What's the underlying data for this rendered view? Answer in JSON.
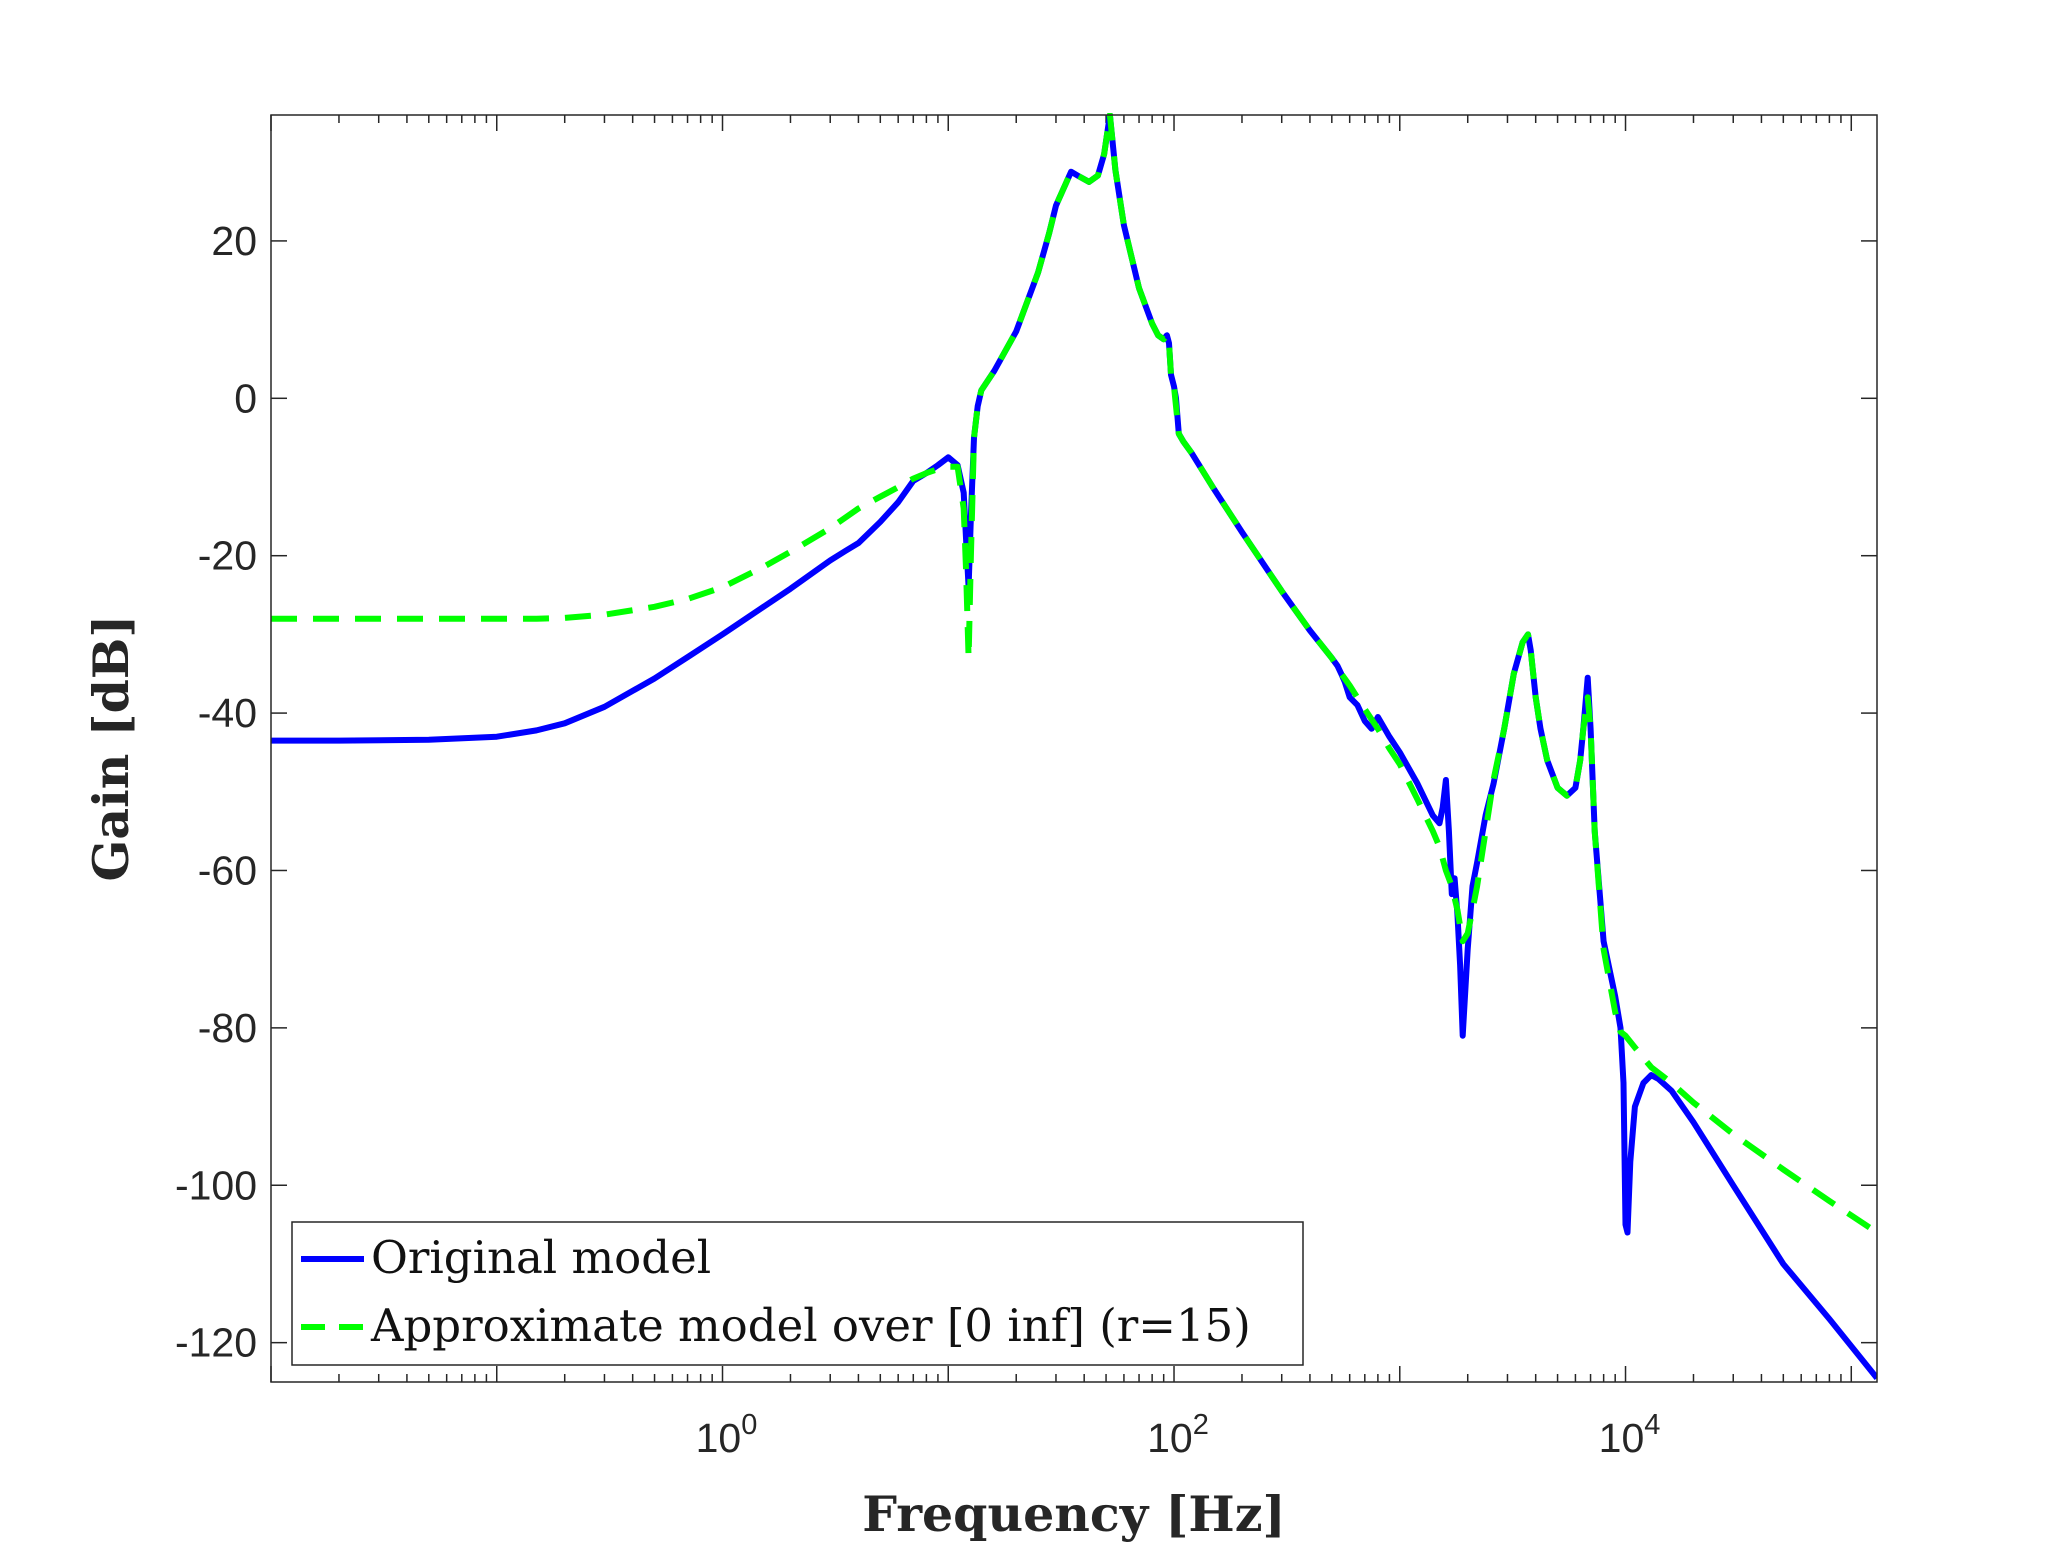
{
  "chart_data": {
    "type": "line",
    "xlabel": "Frequency [Hz]",
    "ylabel": "Gain [dB]",
    "xscale": "log",
    "xlim": [
      0.01,
      130000
    ],
    "ylim": [
      -125,
      36
    ],
    "grid": false,
    "legend_position": "bottom-left",
    "yticks": [
      20,
      0,
      -20,
      -40,
      -60,
      -80,
      -100,
      -120
    ],
    "ytick_labels": [
      "20",
      "0",
      "-20",
      "-40",
      "-60",
      "-80",
      "-100",
      "-120"
    ],
    "xticks": [
      1,
      100,
      10000
    ],
    "xtick_labels": [
      {
        "base": "10",
        "exp": "0"
      },
      {
        "base": "10",
        "exp": "2"
      },
      {
        "base": "10",
        "exp": "4"
      }
    ],
    "series": [
      {
        "name": "Original model",
        "color": "#0000ff",
        "style": "solid",
        "x": [
          0.01,
          0.02,
          0.05,
          0.1,
          0.15,
          0.2,
          0.3,
          0.5,
          0.7,
          1,
          1.5,
          2,
          3,
          3.5,
          4,
          5,
          6,
          7,
          8,
          9,
          10,
          11,
          11.7,
          12,
          12.3,
          12.6,
          13,
          13.5,
          14,
          16,
          20,
          25,
          28,
          30,
          35,
          38,
          42,
          46,
          49,
          52,
          55,
          60,
          70,
          80,
          85,
          90,
          93,
          95,
          97,
          100,
          102,
          105,
          110,
          120,
          150,
          200,
          300,
          400,
          500,
          530,
          550,
          570,
          600,
          650,
          700,
          750,
          800,
          900,
          1000,
          1200,
          1400,
          1500,
          1550,
          1600,
          1650,
          1700,
          1750,
          1800,
          1850,
          1900,
          2000,
          2100,
          2200,
          2400,
          2600,
          2900,
          3200,
          3500,
          3700,
          3800,
          3900,
          4000,
          4200,
          4500,
          5000,
          5500,
          6000,
          6300,
          6500,
          6800,
          7000,
          7300,
          8000,
          9000,
          9500,
          9800,
          10000,
          10200,
          10500,
          11000,
          12000,
          13000,
          14000,
          16000,
          20000,
          30000,
          50000,
          80000,
          130000
        ],
        "y": [
          -43.5,
          -43.5,
          -43.4,
          -43,
          -42.2,
          -41.3,
          -39.2,
          -35.6,
          -32.9,
          -30,
          -26.6,
          -24.2,
          -20.6,
          -19.4,
          -18.4,
          -15.7,
          -13.2,
          -10.5,
          -9.5,
          -8.5,
          -7.5,
          -8.5,
          -12,
          -18,
          -24,
          -15,
          -5,
          -1,
          1,
          3.5,
          8.5,
          16,
          21,
          24.5,
          28.8,
          28.2,
          27.5,
          28.3,
          31,
          36,
          29,
          22,
          14,
          9.5,
          8,
          7.5,
          8,
          7,
          3,
          1.5,
          0,
          -4.5,
          -5.5,
          -7,
          -11.5,
          -17,
          -24.5,
          -29.5,
          -33,
          -34,
          -35,
          -36,
          -38,
          -39,
          -41,
          -42,
          -40.5,
          -43,
          -45,
          -49,
          -53,
          -54,
          -52,
          -48.5,
          -55,
          -63,
          -61,
          -65.5,
          -72,
          -81,
          -70,
          -62,
          -59,
          -53,
          -49,
          -42,
          -35,
          -31,
          -30,
          -32,
          -35,
          -38,
          -42,
          -46,
          -49.5,
          -50.5,
          -49.5,
          -46,
          -42,
          -35.5,
          -42,
          -55,
          -69,
          -76,
          -80,
          -87,
          -105,
          -106,
          -97,
          -90,
          -87,
          -86,
          -86.5,
          -88,
          -92,
          -100,
          -110,
          -117,
          -124.5
        ]
      },
      {
        "name": "Approximate model over [0 inf] (r=15)",
        "color": "#00ff00",
        "style": "dashed",
        "x": [
          0.01,
          0.02,
          0.05,
          0.1,
          0.15,
          0.2,
          0.3,
          0.5,
          0.7,
          1,
          1.5,
          2,
          3,
          4,
          5,
          6,
          7,
          8,
          9,
          10,
          11,
          11.7,
          12,
          12.3,
          12.6,
          13,
          13.5,
          14,
          16,
          20,
          25,
          28,
          30,
          35,
          38,
          42,
          46,
          49,
          52,
          55,
          60,
          70,
          80,
          85,
          90,
          93,
          95,
          97,
          100,
          102,
          105,
          110,
          120,
          150,
          200,
          300,
          400,
          500,
          550,
          600,
          700,
          800,
          900,
          1000,
          1200,
          1400,
          1500,
          1600,
          1700,
          1800,
          1900,
          2000,
          2100,
          2200,
          2400,
          2600,
          2900,
          3200,
          3500,
          3700,
          3800,
          3900,
          4000,
          4200,
          4500,
          5000,
          5500,
          6000,
          6300,
          6500,
          6800,
          7000,
          7300,
          8000,
          9000,
          9500,
          10000,
          11000,
          13000,
          16000,
          20000,
          30000,
          50000,
          80000,
          130000
        ],
        "y": [
          -28,
          -28,
          -28,
          -28,
          -28,
          -27.9,
          -27.5,
          -26.5,
          -25.5,
          -24,
          -21.5,
          -19.5,
          -16.5,
          -14,
          -12.5,
          -11.3,
          -10.2,
          -9.5,
          -9,
          -8.7,
          -8.7,
          -14,
          -22,
          -33,
          -20,
          -5,
          -1,
          1,
          3.5,
          8.5,
          16,
          21,
          24.5,
          28.8,
          28.2,
          27.5,
          28.3,
          31,
          36,
          29,
          22,
          14,
          9.5,
          8,
          7.5,
          8,
          7,
          3,
          1.5,
          -1,
          -4.5,
          -5.5,
          -7,
          -11.5,
          -17,
          -24.5,
          -29.5,
          -33,
          -35,
          -36.5,
          -39.5,
          -42,
          -44.5,
          -46.5,
          -51,
          -55,
          -57,
          -60,
          -62,
          -65,
          -69,
          -68,
          -65,
          -62,
          -55,
          -48.5,
          -42,
          -35,
          -31,
          -30,
          -32,
          -35,
          -38,
          -42,
          -46,
          -49.5,
          -50.5,
          -49.5,
          -46,
          -42,
          -38,
          -42,
          -55,
          -70,
          -78,
          -80.5,
          -81,
          -82.5,
          -85,
          -87,
          -89.5,
          -93.5,
          -98,
          -102,
          -106
        ]
      }
    ]
  }
}
